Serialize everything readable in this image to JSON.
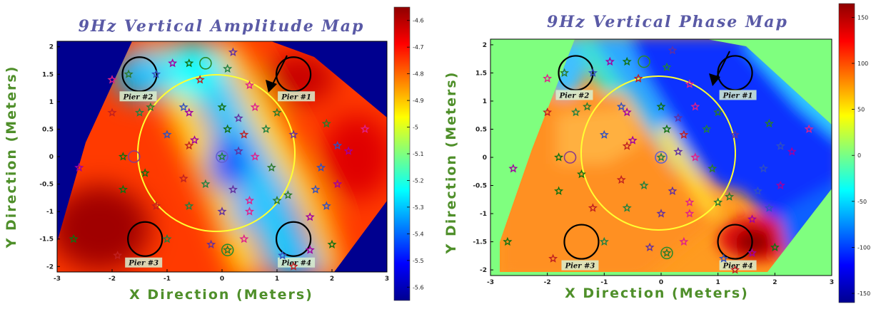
{
  "chart_data": [
    {
      "type": "heatmap",
      "title": "9Hz Vertical Amplitude Map",
      "xlabel": "X Direction (Meters)",
      "ylabel": "Y Direction (Meters)",
      "xlim": [
        -3,
        3
      ],
      "ylim": [
        -2.1,
        2.1
      ],
      "x_ticks": [
        -3,
        -2,
        -1,
        0,
        1,
        2,
        3
      ],
      "y_ticks": [
        -2,
        -1.5,
        -1,
        -0.5,
        0,
        0.5,
        1,
        1.5,
        2
      ],
      "colorbar": {
        "min": -5.65,
        "max": -4.55,
        "ticks": [
          -4.6,
          -4.7,
          -4.8,
          -4.9,
          -5,
          -5.1,
          -5.2,
          -5.3,
          -5.4,
          -5.5,
          -5.6
        ]
      },
      "piers": [
        {
          "label": "Pier #1",
          "x": 1.3,
          "y": 1.5
        },
        {
          "label": "Pier #2",
          "x": -1.5,
          "y": 1.5
        },
        {
          "label": "Pier #3",
          "x": -1.4,
          "y": -1.5
        },
        {
          "label": "Pier #4",
          "x": 1.3,
          "y": -1.5
        }
      ],
      "background_color": "#00008f",
      "scale": "jet"
    },
    {
      "type": "heatmap",
      "title": "9Hz Vertical Phase Map",
      "xlabel": "X Direction (Meters)",
      "ylabel": "Y Direction (Meters)",
      "xlim": [
        -3,
        3
      ],
      "ylim": [
        -2.1,
        2.1
      ],
      "x_ticks": [
        -3,
        -2,
        -1,
        0,
        1,
        2,
        3
      ],
      "y_ticks": [
        -2,
        -1.5,
        -1,
        -0.5,
        0,
        0.5,
        1,
        1.5,
        2
      ],
      "colorbar": {
        "min": -160,
        "max": 165,
        "ticks": [
          150,
          100,
          50,
          0,
          -50,
          -100,
          -150
        ]
      },
      "piers": [
        {
          "label": "Pier #1",
          "x": 1.3,
          "y": 1.5
        },
        {
          "label": "Pier #2",
          "x": -1.5,
          "y": 1.5
        },
        {
          "label": "Pier #3",
          "x": -1.4,
          "y": -1.5
        },
        {
          "label": "Pier #4",
          "x": 1.3,
          "y": -1.5
        }
      ],
      "background_color": "#7fff7f",
      "scale": "jet"
    }
  ]
}
